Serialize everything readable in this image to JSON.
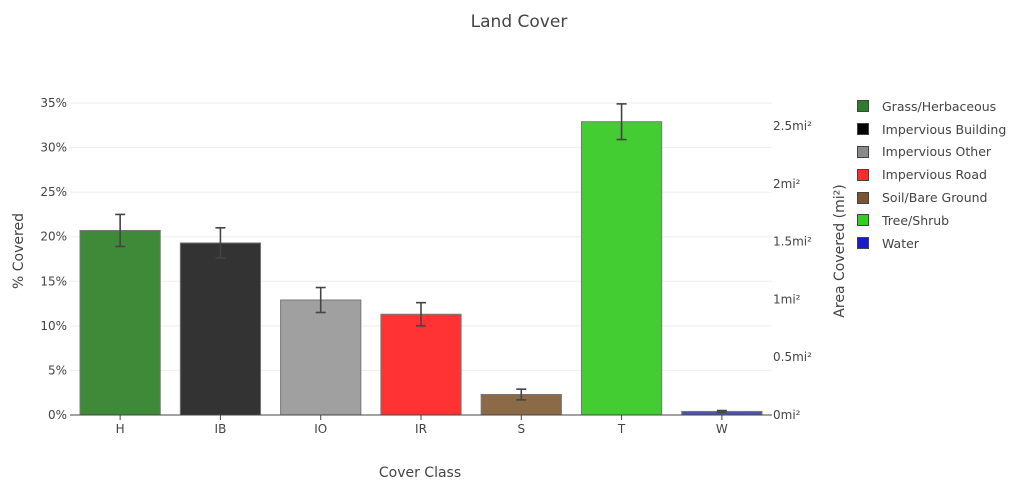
{
  "chart_data": {
    "type": "bar",
    "title": "Land Cover",
    "xlabel": "Cover Class",
    "ylabel": "% Covered",
    "y2label": "Area Covered (mi²)",
    "categories": [
      "H",
      "IB",
      "IO",
      "IR",
      "S",
      "T",
      "W"
    ],
    "values": [
      20.7,
      19.3,
      12.9,
      11.3,
      2.3,
      32.9,
      0.4
    ],
    "error": [
      1.8,
      1.7,
      1.4,
      1.3,
      0.6,
      2.0,
      0.1
    ],
    "colors": [
      "#3f8a38",
      "#333333",
      "#a0a0a0",
      "#ff3333",
      "#8b6a48",
      "#44cc33",
      "#4a55b0"
    ],
    "ylim": [
      0,
      35
    ],
    "yticks": [
      0,
      5,
      10,
      15,
      20,
      25,
      30,
      35
    ],
    "yticklabels": [
      "0%",
      "5%",
      "10%",
      "15%",
      "20%",
      "25%",
      "30%",
      "35%"
    ],
    "y2lim": [
      0,
      2.7
    ],
    "y2ticks": [
      0,
      0.5,
      1,
      1.5,
      2,
      2.5
    ],
    "y2ticklabels": [
      "0mi²",
      "0.5mi²",
      "1mi²",
      "1.5mi²",
      "2mi²",
      "2.5mi²"
    ],
    "grid": true,
    "legend_position": "right",
    "legend": [
      {
        "label": "Grass/Herbaceous",
        "color": "#2e7d2e"
      },
      {
        "label": "Impervious Building",
        "color": "#000000"
      },
      {
        "label": "Impervious Other",
        "color": "#8a8a8a"
      },
      {
        "label": "Impervious Road",
        "color": "#ff2a2a"
      },
      {
        "label": "Soil/Bare Ground",
        "color": "#7a5533"
      },
      {
        "label": "Tree/Shrub",
        "color": "#33cc22"
      },
      {
        "label": "Water",
        "color": "#1a1acc"
      }
    ]
  }
}
